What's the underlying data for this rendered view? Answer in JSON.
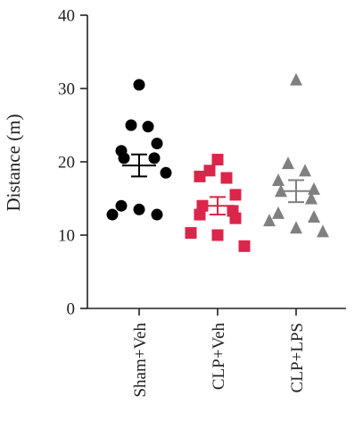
{
  "chart_data": {
    "type": "scatter",
    "ylabel": "Distance (m)",
    "ylim": [
      0,
      40
    ],
    "yticks": [
      0,
      10,
      20,
      30,
      40
    ],
    "categories": [
      "Sham+Veh",
      "CLP+Veh",
      "CLP+LPS"
    ],
    "grid": false,
    "series": [
      {
        "category": "Sham+Veh",
        "marker": "circle",
        "color": "#000000",
        "values": [
          30.5,
          25,
          24.8,
          21.5,
          22.5,
          20.5,
          20.5,
          14,
          12.8,
          12.8,
          13.5,
          18.5
        ],
        "mean": 19.5,
        "sem_low": 18.0,
        "sem_high": 21.0
      },
      {
        "category": "CLP+Veh",
        "marker": "square",
        "color": "#d9264a",
        "values": [
          20.3,
          18.8,
          17.8,
          18.0,
          15.5,
          14.0,
          13.3,
          12.8,
          12.3,
          10.3,
          10.0,
          8.5
        ],
        "mean": 14.0,
        "sem_low": 12.8,
        "sem_high": 15.2
      },
      {
        "category": "CLP+LPS",
        "marker": "triangle",
        "color": "#808080",
        "values": [
          31.2,
          19.8,
          18.8,
          17.5,
          16.3,
          16.0,
          15.0,
          13.0,
          12.5,
          12.0,
          11.0,
          10.5
        ],
        "mean": 16.0,
        "sem_low": 14.5,
        "sem_high": 17.5
      }
    ]
  }
}
